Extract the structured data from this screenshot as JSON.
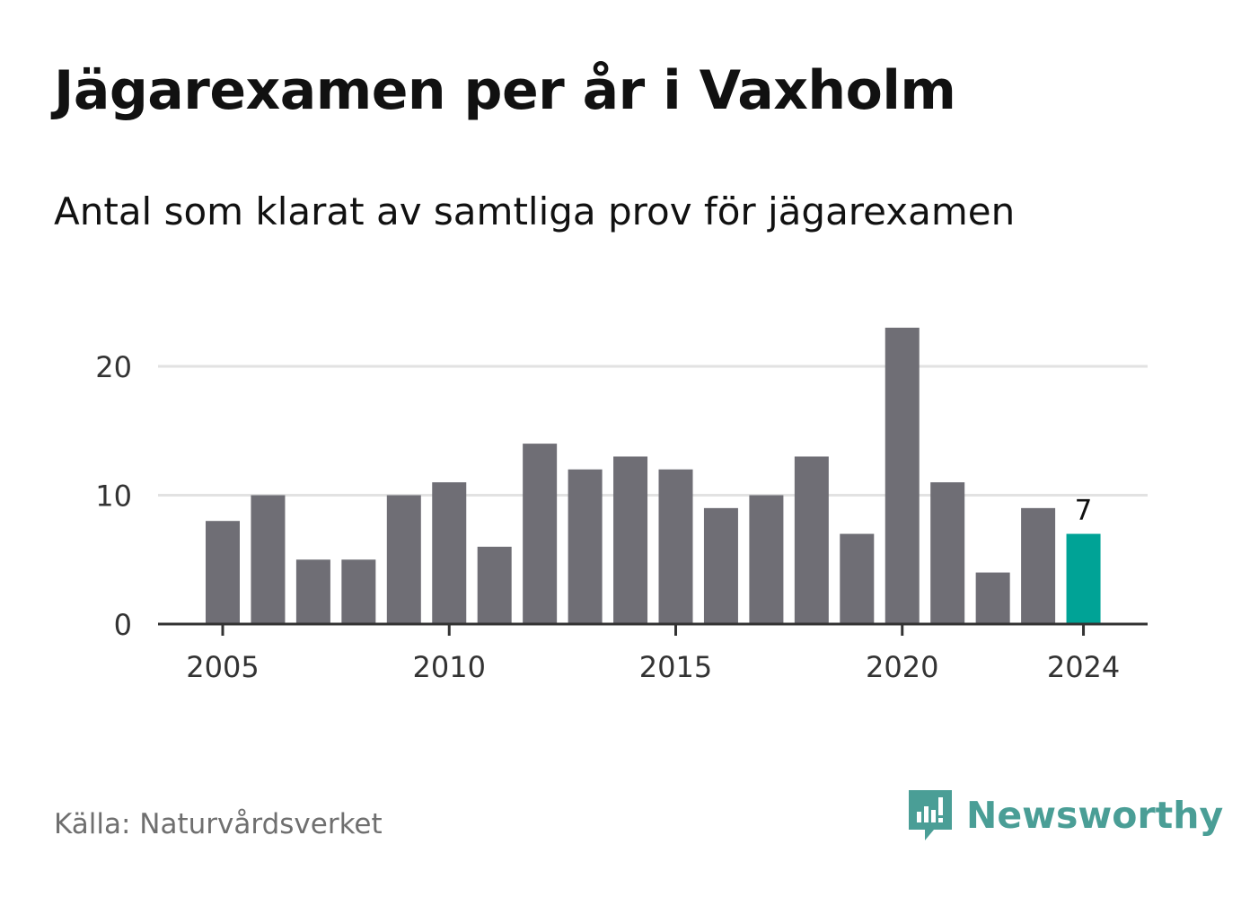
{
  "title": "Jägarexamen per år i Vaxholm",
  "subtitle": "Antal som klarat av samtliga prov för jägarexamen",
  "source": "Källa: Naturvårdsverket",
  "brand": {
    "name": "Newsworthy",
    "icon": "newsworthy-logo-icon",
    "color": "#4a9e96"
  },
  "colors": {
    "bar": "#6f6e75",
    "highlight": "#00a396",
    "grid": "#e2e2e2",
    "axis": "#333333"
  },
  "chart_data": {
    "type": "bar",
    "categories": [
      "2005",
      "2006",
      "2007",
      "2008",
      "2009",
      "2010",
      "2011",
      "2012",
      "2013",
      "2014",
      "2015",
      "2016",
      "2017",
      "2018",
      "2019",
      "2020",
      "2021",
      "2022",
      "2023",
      "2024"
    ],
    "values": [
      8,
      10,
      5,
      5,
      10,
      11,
      6,
      14,
      12,
      13,
      12,
      9,
      10,
      13,
      7,
      23,
      11,
      4,
      9,
      7
    ],
    "highlight_index": 19,
    "highlight_label": "7",
    "x_tick_labels": [
      "2005",
      "2010",
      "2015",
      "2020",
      "2024"
    ],
    "y_ticks": [
      0,
      10,
      20
    ],
    "ylim": [
      0,
      24
    ],
    "grid": true,
    "title": "Jägarexamen per år i Vaxholm",
    "xlabel": "",
    "ylabel": ""
  }
}
